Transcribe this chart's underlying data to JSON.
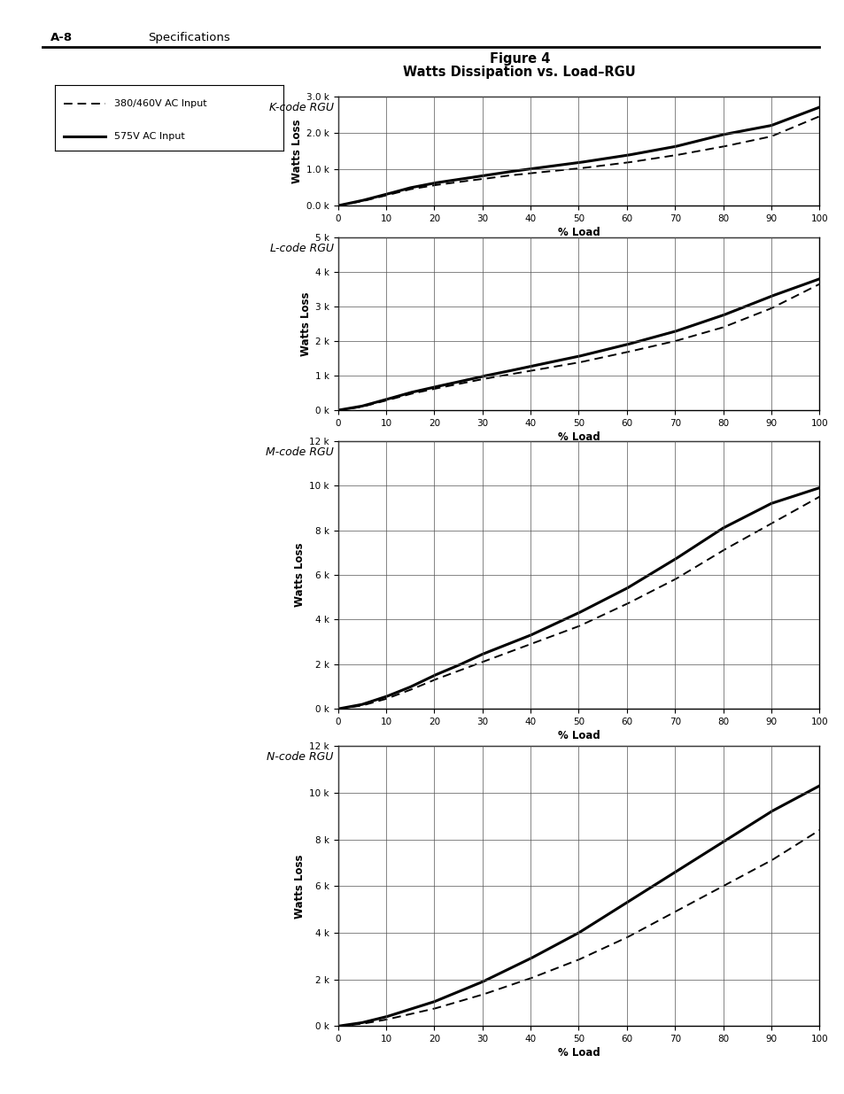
{
  "title_line1": "Figure 4",
  "title_line2": "Watts Dissipation vs. Load–RGU",
  "header_left": "A-8",
  "header_right": "Specifications",
  "x_label": "% Load",
  "y_label": "Watts Loss",
  "x_ticks": [
    0,
    10,
    20,
    30,
    40,
    50,
    60,
    70,
    80,
    90,
    100
  ],
  "charts": [
    {
      "label": "K-code RGU",
      "ylim": [
        0,
        3000
      ],
      "yticks": [
        0,
        1000,
        2000,
        3000
      ],
      "yticklabels": [
        "0.0 k",
        "1.0 k",
        "2.0 k",
        "3.0 k"
      ],
      "dashed_x": [
        0,
        5,
        10,
        15,
        20,
        25,
        30,
        35,
        40,
        50,
        60,
        70,
        80,
        90,
        100
      ],
      "dashed_y": [
        0,
        120,
        280,
        450,
        560,
        650,
        730,
        820,
        890,
        1020,
        1180,
        1380,
        1620,
        1900,
        2450
      ],
      "solid_x": [
        0,
        5,
        10,
        15,
        20,
        25,
        30,
        35,
        40,
        50,
        60,
        70,
        80,
        90,
        100
      ],
      "solid_y": [
        0,
        140,
        310,
        490,
        620,
        720,
        820,
        920,
        1010,
        1180,
        1380,
        1620,
        1950,
        2200,
        2700
      ]
    },
    {
      "label": "L-code RGU",
      "ylim": [
        0,
        5000
      ],
      "yticks": [
        0,
        1000,
        2000,
        3000,
        4000,
        5000
      ],
      "yticklabels": [
        "0 k",
        "1 k",
        "2 k",
        "3 k",
        "4 k",
        "5 k"
      ],
      "dashed_x": [
        0,
        5,
        10,
        15,
        20,
        25,
        30,
        35,
        40,
        50,
        60,
        70,
        80,
        90,
        100
      ],
      "dashed_y": [
        0,
        100,
        280,
        470,
        620,
        760,
        900,
        1020,
        1140,
        1380,
        1680,
        2000,
        2400,
        2950,
        3650
      ],
      "solid_x": [
        0,
        5,
        10,
        15,
        20,
        25,
        30,
        35,
        40,
        50,
        60,
        70,
        80,
        90,
        100
      ],
      "solid_y": [
        0,
        120,
        310,
        510,
        670,
        820,
        980,
        1120,
        1270,
        1560,
        1900,
        2280,
        2750,
        3300,
        3800
      ]
    },
    {
      "label": "M-code RGU",
      "ylim": [
        0,
        12000
      ],
      "yticks": [
        0,
        2000,
        4000,
        6000,
        8000,
        10000,
        12000
      ],
      "yticklabels": [
        "0 k",
        "2 k",
        "4 k",
        "6 k",
        "8 k",
        "10 k",
        "12 k"
      ],
      "dashed_x": [
        0,
        5,
        10,
        15,
        20,
        25,
        30,
        40,
        50,
        60,
        70,
        80,
        90,
        100
      ],
      "dashed_y": [
        0,
        150,
        450,
        850,
        1300,
        1700,
        2100,
        2900,
        3700,
        4700,
        5800,
        7100,
        8300,
        9500
      ],
      "solid_x": [
        0,
        5,
        10,
        15,
        20,
        25,
        30,
        40,
        50,
        60,
        70,
        80,
        90,
        100
      ],
      "solid_y": [
        0,
        200,
        550,
        980,
        1500,
        1950,
        2450,
        3300,
        4300,
        5400,
        6700,
        8100,
        9200,
        9900
      ]
    },
    {
      "label": "N-code RGU",
      "ylim": [
        0,
        12000
      ],
      "yticks": [
        0,
        2000,
        4000,
        6000,
        8000,
        10000,
        12000
      ],
      "yticklabels": [
        "0 k",
        "2 k",
        "4 k",
        "6 k",
        "8 k",
        "10 k",
        "12 k"
      ],
      "dashed_x": [
        0,
        5,
        10,
        20,
        30,
        40,
        50,
        60,
        70,
        80,
        90,
        100
      ],
      "dashed_y": [
        0,
        100,
        280,
        750,
        1350,
        2050,
        2850,
        3800,
        4900,
        6000,
        7100,
        8400
      ],
      "solid_x": [
        0,
        5,
        10,
        20,
        30,
        40,
        50,
        60,
        70,
        80,
        90,
        100
      ],
      "solid_y": [
        0,
        150,
        400,
        1050,
        1900,
        2900,
        4000,
        5300,
        6600,
        7900,
        9200,
        10300
      ]
    }
  ],
  "bg_color": "#ffffff",
  "line_color": "#000000",
  "grid_color": "#888888"
}
